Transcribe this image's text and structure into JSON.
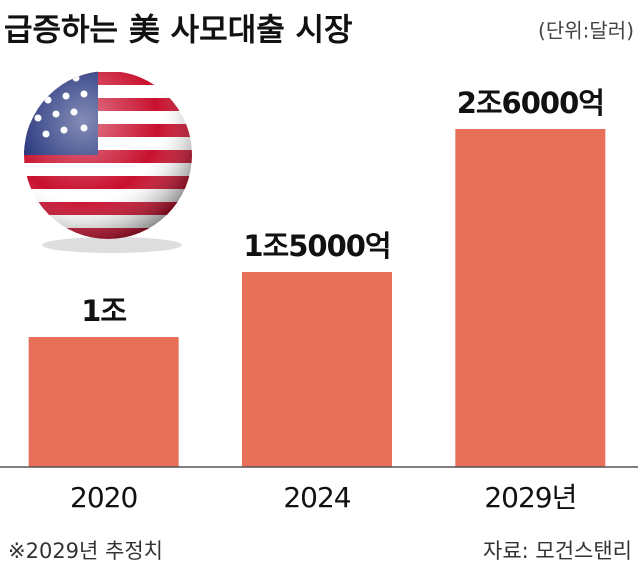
{
  "chart_data": {
    "type": "bar",
    "title": "급증하는 美 사모대출 시장",
    "subtitle": "(단위:달러)",
    "categories": [
      "2020",
      "2024",
      "2029년"
    ],
    "values": [
      1,
      1.5,
      2.6
    ],
    "value_labels": [
      "1조",
      "1조5000억",
      "2조6000억"
    ],
    "color": "#e8705a",
    "footnote": "※2029년 추정치",
    "source": "자료: 모건스탠리"
  }
}
